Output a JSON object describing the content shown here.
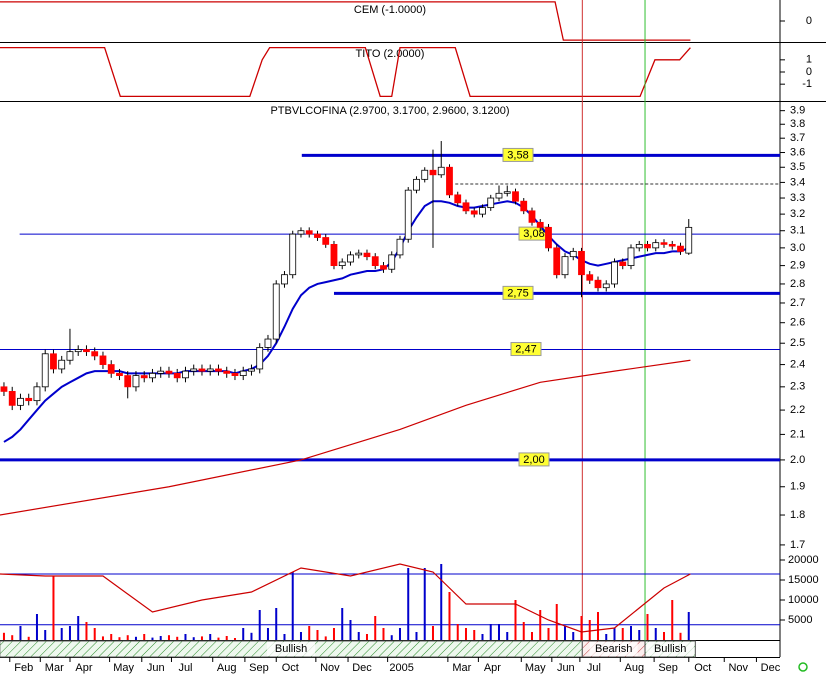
{
  "chart_data": {
    "type": "candlestick",
    "title": "PTBVLCOFINA (2.9700, 3.1700, 2.9600, 3.1200)",
    "xlim": [
      -0.48,
      94.06
    ],
    "xticks": [
      {
        "value": 2.4,
        "label": "Feb"
      },
      {
        "value": 6.1,
        "label": "Mar"
      },
      {
        "value": 9.7,
        "label": "Apr"
      },
      {
        "value": 14.5,
        "label": "May"
      },
      {
        "value": 18.4,
        "label": "Jun"
      },
      {
        "value": 22,
        "label": "Jul"
      },
      {
        "value": 27,
        "label": "Aug"
      },
      {
        "value": 30.9,
        "label": "Sep"
      },
      {
        "value": 34.7,
        "label": "Oct"
      },
      {
        "value": 39.5,
        "label": "Nov"
      },
      {
        "value": 43.4,
        "label": "Dec"
      },
      {
        "value": 48.2,
        "label": "2005"
      },
      {
        "value": 55.5,
        "label": "Mar"
      },
      {
        "value": 59.2,
        "label": "Apr"
      },
      {
        "value": 64.4,
        "label": "May"
      },
      {
        "value": 68.1,
        "label": "Jun"
      },
      {
        "value": 71.5,
        "label": "Jul"
      },
      {
        "value": 76.4,
        "label": "Aug"
      },
      {
        "value": 80.5,
        "label": "Sep"
      },
      {
        "value": 84.7,
        "label": "Oct"
      },
      {
        "value": 89,
        "label": "Nov"
      },
      {
        "value": 92.9,
        "label": "Dec"
      }
    ],
    "ylim": [
      1.69,
      3.95
    ],
    "log_scale": true,
    "yticks": [
      1.7,
      1.8,
      1.9,
      {
        "value": 2,
        "label": "2.0"
      },
      2.1,
      2.2,
      2.3,
      2.4,
      2.5,
      2.6,
      2.7,
      2.8,
      2.9,
      {
        "value": 3,
        "label": "3.0"
      },
      3.1,
      3.2,
      3.3,
      3.4,
      3.5,
      3.6,
      3.7,
      3.8,
      3.9
    ],
    "up_color": "#ffffff",
    "down_color": "#ff0000",
    "open": [
      2.3,
      2.28,
      2.22,
      2.25,
      2.24,
      2.3,
      2.45,
      2.38,
      2.42,
      2.46,
      2.47,
      2.46,
      2.44,
      2.4,
      2.36,
      2.35,
      2.3,
      2.35,
      2.34,
      2.36,
      2.37,
      2.36,
      2.34,
      2.37,
      2.38,
      2.37,
      2.38,
      2.37,
      2.36,
      2.35,
      2.37,
      2.38,
      2.48,
      2.52,
      2.8,
      2.85,
      3.08,
      3.1,
      3.08,
      3.06,
      3.02,
      2.9,
      2.92,
      2.96,
      2.97,
      2.95,
      2.9,
      2.88,
      2.96,
      3.05,
      3.35,
      3.42,
      3.48,
      3.45,
      3.5,
      3.32,
      3.27,
      3.22,
      3.2,
      3.24,
      3.3,
      3.33,
      3.34,
      3.28,
      3.22,
      3.15,
      3.12,
      3.0,
      2.85,
      2.95,
      2.98,
      2.85,
      2.82,
      2.78,
      2.8,
      2.92,
      2.9,
      3.0,
      3.02,
      3.0,
      3.03,
      3.02,
      3.01,
      2.97
    ],
    "high": [
      2.32,
      2.3,
      2.27,
      2.27,
      2.32,
      2.47,
      2.47,
      2.44,
      2.57,
      2.49,
      2.49,
      2.48,
      2.46,
      2.42,
      2.38,
      2.37,
      2.37,
      2.37,
      2.38,
      2.39,
      2.39,
      2.38,
      2.39,
      2.4,
      2.4,
      2.4,
      2.4,
      2.39,
      2.38,
      2.39,
      2.4,
      2.5,
      2.54,
      2.82,
      2.87,
      3.1,
      3.12,
      3.12,
      3.1,
      3.08,
      3.04,
      2.94,
      2.98,
      2.99,
      2.99,
      2.97,
      2.92,
      2.98,
      3.07,
      3.37,
      3.44,
      3.5,
      3.62,
      3.68,
      3.52,
      3.34,
      3.29,
      3.24,
      3.26,
      3.32,
      3.38,
      3.38,
      3.36,
      3.3,
      3.24,
      3.17,
      3.14,
      3.02,
      2.97,
      3.0,
      3.0,
      2.87,
      2.84,
      2.82,
      2.94,
      2.94,
      3.02,
      3.04,
      3.04,
      3.05,
      3.05,
      3.04,
      3.03,
      3.17
    ],
    "low": [
      2.26,
      2.2,
      2.2,
      2.22,
      2.22,
      2.28,
      2.36,
      2.36,
      2.4,
      2.44,
      2.44,
      2.42,
      2.38,
      2.34,
      2.33,
      2.25,
      2.28,
      2.32,
      2.32,
      2.34,
      2.34,
      2.32,
      2.32,
      2.35,
      2.35,
      2.35,
      2.35,
      2.34,
      2.33,
      2.33,
      2.35,
      2.36,
      2.46,
      2.5,
      2.78,
      2.83,
      3.06,
      3.06,
      3.04,
      3.0,
      2.88,
      2.88,
      2.9,
      2.94,
      2.93,
      2.88,
      2.86,
      2.86,
      2.94,
      3.03,
      3.33,
      3.4,
      3.0,
      3.43,
      3.3,
      3.25,
      3.2,
      3.18,
      3.18,
      3.22,
      3.28,
      3.31,
      3.26,
      3.2,
      3.13,
      3.1,
      2.98,
      2.83,
      2.83,
      2.93,
      2.73,
      2.8,
      2.76,
      2.76,
      2.78,
      2.88,
      2.88,
      2.98,
      2.98,
      2.98,
      3.0,
      2.99,
      2.96,
      2.96
    ],
    "close": [
      2.28,
      2.22,
      2.25,
      2.24,
      2.3,
      2.45,
      2.38,
      2.42,
      2.46,
      2.47,
      2.46,
      2.44,
      2.4,
      2.36,
      2.35,
      2.3,
      2.35,
      2.34,
      2.36,
      2.37,
      2.36,
      2.34,
      2.37,
      2.38,
      2.37,
      2.38,
      2.37,
      2.36,
      2.35,
      2.37,
      2.38,
      2.48,
      2.52,
      2.8,
      2.85,
      3.08,
      3.1,
      3.08,
      3.06,
      3.02,
      2.9,
      2.92,
      2.96,
      2.97,
      2.95,
      2.9,
      2.88,
      2.96,
      3.05,
      3.35,
      3.42,
      3.48,
      3.45,
      3.5,
      3.32,
      3.27,
      3.22,
      3.2,
      3.24,
      3.3,
      3.33,
      3.34,
      3.28,
      3.22,
      3.15,
      3.12,
      3.0,
      2.85,
      2.95,
      2.98,
      2.85,
      2.82,
      2.78,
      2.8,
      2.92,
      2.9,
      3.0,
      3.02,
      3.0,
      3.03,
      3.02,
      3.01,
      2.98,
      3.12
    ],
    "series": [
      {
        "color": "#0000cc",
        "values": [
          2.07,
          2.09,
          2.12,
          2.16,
          2.2,
          2.24,
          2.27,
          2.3,
          2.32,
          2.34,
          2.36,
          2.37,
          2.37,
          2.37,
          2.37,
          2.36,
          2.36,
          2.36,
          2.36,
          2.36,
          2.36,
          2.36,
          2.37,
          2.37,
          2.37,
          2.37,
          2.37,
          2.37,
          2.36,
          2.37,
          2.38,
          2.4,
          2.44,
          2.5,
          2.58,
          2.67,
          2.74,
          2.78,
          2.8,
          2.81,
          2.82,
          2.83,
          2.85,
          2.86,
          2.87,
          2.87,
          2.88,
          2.92,
          3.0,
          3.1,
          3.18,
          3.25,
          3.28,
          3.28,
          3.27,
          3.25,
          3.24,
          3.24,
          3.25,
          3.26,
          3.27,
          3.28,
          3.27,
          3.24,
          3.19,
          3.13,
          3.07,
          3.02,
          2.98,
          2.96,
          2.93,
          2.91,
          2.9,
          2.91,
          2.92,
          2.93,
          2.94,
          2.95,
          2.96,
          2.97,
          2.97,
          2.98,
          2.98,
          3.0
        ]
      },
      {
        "color": "#cc0000",
        "x": [
          -0.5,
          20,
          36,
          48,
          56,
          65,
          74,
          83.2
        ],
        "values": [
          1.8,
          1.9,
          2.0,
          2.12,
          2.22,
          2.32,
          2.37,
          2.42
        ]
      }
    ],
    "levels": [
      {
        "value": 3.58,
        "label": "3,58",
        "start": 36.1,
        "style": "thick"
      },
      {
        "value": 3.39,
        "start": 54.7,
        "style": "dashed"
      },
      {
        "value": 3.08,
        "label": "3,08",
        "start": 1.9,
        "style": "thin"
      },
      {
        "value": 2.75,
        "label": "2,75",
        "start": 40,
        "style": "thick"
      },
      {
        "value": 2.47,
        "label": "2,47",
        "start": -0.5,
        "style": "thin"
      },
      {
        "value": 2.0,
        "label": "2,00",
        "start": -0.5,
        "style": "thick"
      }
    ],
    "markers": [
      {
        "at": 70.1,
        "color": "#d03030"
      },
      {
        "at": 77.7,
        "color": "#30c030"
      }
    ],
    "volume": {
      "ylim": [
        0,
        20000
      ],
      "yticks": [
        5000,
        10000,
        15000,
        20000
      ],
      "levels": [
        16500,
        3800
      ],
      "up_color": "#0000cc",
      "down_color": "#ff0000",
      "values": [
        1800,
        1200,
        3500,
        800,
        6500,
        2500,
        16000,
        3000,
        3500,
        6000,
        4500,
        3000,
        900,
        1500,
        700,
        1200,
        800,
        1500,
        600,
        1000,
        1200,
        800,
        1500,
        700,
        900,
        1500,
        600,
        1000,
        500,
        3000,
        1800,
        7500,
        3000,
        8000,
        1500,
        17000,
        2000,
        3500,
        2500,
        900,
        3000,
        8000,
        5000,
        2000,
        1500,
        6000,
        3000,
        1200,
        3000,
        18000,
        2000,
        18000,
        3500,
        19000,
        12000,
        4000,
        3000,
        2500,
        1500,
        4000,
        4000,
        2000,
        10000,
        4500,
        2000,
        7500,
        3000,
        9000,
        3500,
        2000,
        6000,
        5000,
        7000,
        1500,
        3000,
        3000,
        3500,
        2500,
        6500,
        3000,
        2000,
        10000,
        1800,
        7000
      ],
      "line": {
        "color": "#cc0000",
        "x": [
          -0.5,
          5,
          12,
          18,
          24,
          30,
          36,
          42,
          48,
          52,
          56,
          62,
          66,
          70,
          74,
          80,
          83.2
        ],
        "values": [
          16500,
          16000,
          16000,
          7000,
          10000,
          12000,
          18000,
          16000,
          19000,
          17000,
          9000,
          9000,
          5000,
          2000,
          3000,
          13000,
          16500
        ]
      }
    },
    "indicators": [
      {
        "title": "CEM (-1.0000)",
        "ylim": [
          -1.1,
          1.1
        ],
        "yticks": [
          0
        ],
        "color": "#cc0000",
        "x": [
          -0.5,
          66.8,
          67.8,
          83.2
        ],
        "values": [
          1,
          1,
          -1,
          -1
        ]
      },
      {
        "title": "TITO (2.0000)",
        "ylim": [
          -2.3,
          2.3
        ],
        "yticks": [
          1,
          0,
          -1
        ],
        "color": "#cc0000",
        "x": [
          -0.5,
          12.2,
          14.1,
          29.8,
          31.3,
          32.2,
          43.8,
          45.6,
          47,
          48,
          54.7,
          56.5,
          77.1,
          78.9,
          81.9,
          83.2
        ],
        "values": [
          2,
          2,
          -2,
          -2,
          1,
          2,
          2,
          -2,
          -2,
          2,
          2,
          -2,
          -2,
          1,
          1,
          2
        ]
      }
    ],
    "signals": [
      {
        "label": "Bullish",
        "start": -0.5,
        "end": 70.1,
        "color": "#2a8a2a"
      },
      {
        "label": "Bearish",
        "start": 70.1,
        "end": 77.7,
        "color": "#c04040"
      },
      {
        "label": "Bullish",
        "start": 77.7,
        "end": 83.8,
        "color": "#2a8a2a"
      }
    ]
  }
}
